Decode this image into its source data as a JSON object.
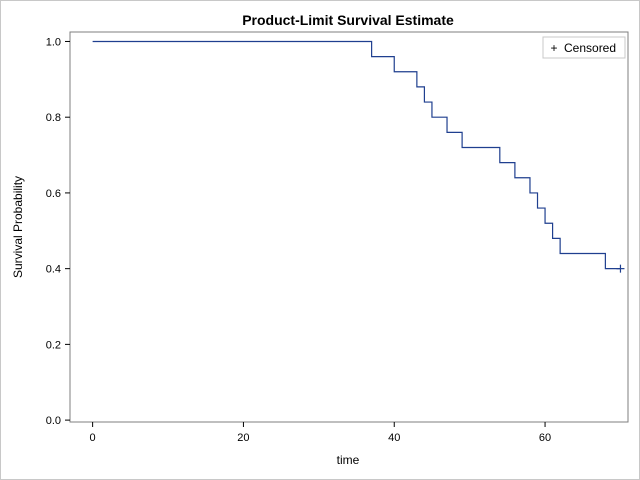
{
  "chart_data": {
    "type": "line",
    "step": true,
    "title": "Product-Limit Survival Estimate",
    "xlabel": "time",
    "ylabel": "Survival Probability",
    "xlim": [
      -3,
      71
    ],
    "ylim": [
      -0.005,
      1.025
    ],
    "xticks": [
      0,
      20,
      40,
      60
    ],
    "yticks": [
      0.0,
      0.2,
      0.4,
      0.6,
      0.8,
      1.0
    ],
    "ytick_labels": [
      "0.0",
      "0.2",
      "0.4",
      "0.6",
      "0.8",
      "1.0"
    ],
    "grid": false,
    "legend": {
      "position": "top-right",
      "entries": [
        {
          "marker": "+",
          "label": "Censored"
        }
      ]
    },
    "series_color": "#1f3f8f",
    "steps": [
      {
        "x": 0,
        "y": 1.0
      },
      {
        "x": 37,
        "y": 0.96
      },
      {
        "x": 40,
        "y": 0.92
      },
      {
        "x": 43,
        "y": 0.88
      },
      {
        "x": 44,
        "y": 0.84
      },
      {
        "x": 45,
        "y": 0.8
      },
      {
        "x": 47,
        "y": 0.76
      },
      {
        "x": 49,
        "y": 0.72
      },
      {
        "x": 54,
        "y": 0.68
      },
      {
        "x": 56,
        "y": 0.64
      },
      {
        "x": 58,
        "y": 0.6
      },
      {
        "x": 59,
        "y": 0.56
      },
      {
        "x": 60,
        "y": 0.52
      },
      {
        "x": 61,
        "y": 0.48
      },
      {
        "x": 62,
        "y": 0.44
      },
      {
        "x": 68,
        "y": 0.4
      }
    ],
    "end_time": 70,
    "censored": [
      {
        "x": 70,
        "y": 0.4
      }
    ]
  }
}
